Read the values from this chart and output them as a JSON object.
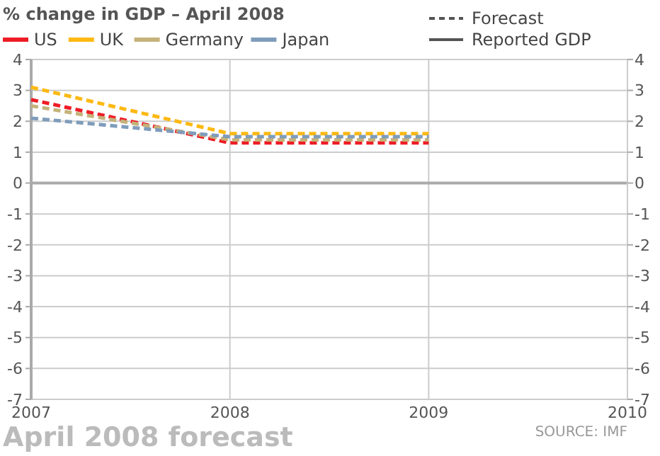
{
  "chart_data": {
    "type": "line",
    "title": "% change in GDP – April 2008",
    "x": [
      2007,
      2008,
      2009
    ],
    "xlim": [
      2007,
      2010
    ],
    "xticks": [
      2007,
      2008,
      2009,
      2010
    ],
    "ylim": [
      -7,
      4
    ],
    "yticks": [
      -7,
      -6,
      -5,
      -4,
      -3,
      -2,
      -1,
      0,
      1,
      2,
      3,
      4
    ],
    "y2lim": [
      -7,
      4
    ],
    "y2ticks": [
      -7,
      -6,
      -5,
      -4,
      -3,
      -2,
      -1,
      0,
      1,
      2,
      3,
      4
    ],
    "grid": true,
    "legend": "top left",
    "line_style": "dashed",
    "series": [
      {
        "name": "US",
        "color": "#ee1c25",
        "values": [
          2.7,
          1.3,
          1.3
        ]
      },
      {
        "name": "UK",
        "color": "#fdb913",
        "values": [
          3.1,
          1.6,
          1.6
        ]
      },
      {
        "name": "Germany",
        "color": "#c4b27a",
        "values": [
          2.5,
          1.4,
          1.4
        ]
      },
      {
        "name": "Japan",
        "color": "#7f9cbb",
        "values": [
          2.1,
          1.5,
          1.5
        ]
      }
    ],
    "annotations": [
      "Forecast",
      "Reported GDP",
      "April 2008 forecast",
      "SOURCE: IMF"
    ]
  }
}
